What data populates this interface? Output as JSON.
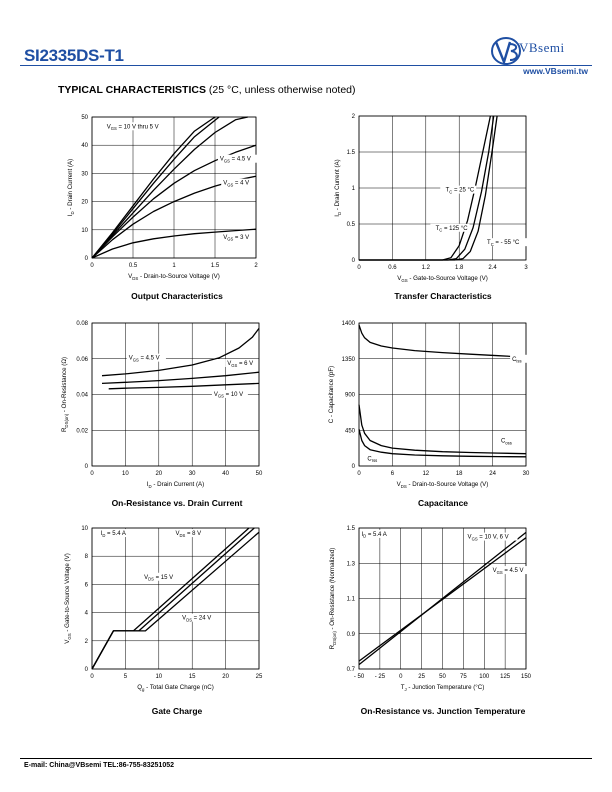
{
  "header": {
    "part_number": "SI2335DS-T1",
    "brand": "VBsemi",
    "website": "www.VBsemi.tw",
    "section_title_bold": "TYPICAL CHARACTERISTICS",
    "section_title_rest": " (25 °C, unless otherwise noted)"
  },
  "footer": {
    "contact": "E-mail:  China@VBsemi   TEL:86-755-83251052"
  },
  "chart_data": [
    {
      "id": "output",
      "type": "line",
      "title": "Output Characteristics",
      "xlabel": "VDS - Drain-to-Source Voltage (V)",
      "ylabel": "ID - Drain Current (A)",
      "xlim": [
        0,
        2
      ],
      "ylim": [
        0,
        50
      ],
      "xticks": [
        "0",
        "0.5",
        "1",
        "1.5",
        "2"
      ],
      "yticks": [
        "0",
        "10",
        "20",
        "30",
        "40",
        "50"
      ],
      "grid": true,
      "series": [
        {
          "name": "VGS = 10 V thru 5 V",
          "x": [
            0,
            0.25,
            0.5,
            0.75,
            1.0,
            1.25,
            1.5
          ],
          "y": [
            0,
            9,
            18.5,
            28,
            37,
            45,
            50
          ]
        },
        {
          "x": [
            0,
            0.25,
            0.5,
            0.75,
            1.0,
            1.25,
            1.55
          ],
          "y": [
            0,
            8.5,
            17.5,
            26.5,
            35,
            43,
            50
          ]
        },
        {
          "x": [
            0,
            0.25,
            0.5,
            0.75,
            1.0,
            1.25,
            1.5,
            1.75,
            1.9
          ],
          "y": [
            0,
            8,
            16,
            24,
            31.5,
            38.5,
            44.5,
            49,
            50
          ]
        },
        {
          "name": "VGS = 4.5 V",
          "x": [
            0,
            0.25,
            0.5,
            0.75,
            1.0,
            1.25,
            1.5,
            1.75,
            2.0
          ],
          "y": [
            0,
            7.5,
            14.5,
            21,
            26.5,
            31,
            34.5,
            37.5,
            40
          ]
        },
        {
          "name": "VGS = 4 V",
          "x": [
            0,
            0.25,
            0.5,
            0.75,
            1.0,
            1.25,
            1.5,
            1.75,
            2.0
          ],
          "y": [
            0,
            6.5,
            12,
            16.5,
            20,
            23,
            25.5,
            27.5,
            29
          ]
        },
        {
          "name": "VGS = 3 V",
          "x": [
            0,
            0.25,
            0.5,
            0.75,
            1.0,
            1.25,
            1.5,
            1.75,
            2.0
          ],
          "y": [
            0,
            3.2,
            5.4,
            6.8,
            7.8,
            8.6,
            9.2,
            9.7,
            10.2
          ]
        }
      ],
      "labels": [
        "VGS = 10 V thru 5 V",
        "VGS = 4.5 V",
        "VGS = 4 V",
        "VGS = 3 V"
      ]
    },
    {
      "id": "transfer",
      "type": "line",
      "title": "Transfer Characteristics",
      "xlabel": "VGS - Gate-to-Source Voltage (V)",
      "ylabel": "ID - Drain Current (A)",
      "xlim": [
        0,
        3
      ],
      "ylim": [
        0,
        2
      ],
      "xticks": [
        "0",
        "0.6",
        "1.2",
        "1.8",
        "2.4",
        "3"
      ],
      "yticks": [
        "0",
        "0.5",
        "1",
        "1.5",
        "2"
      ],
      "grid": true,
      "series": [
        {
          "name": "TC = 25 °C",
          "x": [
            0,
            1.6,
            1.75,
            1.9,
            2.05,
            2.2,
            2.33,
            2.42
          ],
          "y": [
            0,
            0,
            0.02,
            0.15,
            0.45,
            0.95,
            1.5,
            2.0
          ]
        },
        {
          "name": "TC = 125 °C",
          "x": [
            0,
            1.5,
            1.65,
            1.8,
            1.95,
            2.1,
            2.25,
            2.36
          ],
          "y": [
            0,
            0,
            0.03,
            0.2,
            0.55,
            1.05,
            1.6,
            2.0
          ]
        },
        {
          "name": "TC = - 55 °C",
          "x": [
            0,
            1.72,
            1.87,
            2.0,
            2.14,
            2.27,
            2.39,
            2.48
          ],
          "y": [
            0,
            0,
            0.02,
            0.12,
            0.4,
            0.9,
            1.5,
            2.0
          ]
        }
      ],
      "labels": [
        "TC = 25 °C",
        "TC = 125 °C",
        "TC = - 55 °C"
      ]
    },
    {
      "id": "onres",
      "type": "line",
      "title": "On-Resistance vs. Drain Current",
      "xlabel": "ID - Drain Current (A)",
      "ylabel": "RDS(on) - On-Resistance (Ω)",
      "xlim": [
        0,
        50
      ],
      "ylim": [
        0,
        0.08
      ],
      "xticks": [
        "0",
        "10",
        "20",
        "30",
        "40",
        "50"
      ],
      "yticks": [
        "0",
        "0.02",
        "0.04",
        "0.06",
        "0.08"
      ],
      "grid": true,
      "series": [
        {
          "name": "VGS = 4.5 V",
          "x": [
            3,
            10,
            20,
            30,
            38,
            44,
            48,
            50
          ],
          "y": [
            0.0505,
            0.0515,
            0.0535,
            0.0565,
            0.0605,
            0.066,
            0.072,
            0.077
          ]
        },
        {
          "name": "VGS = 6 V",
          "x": [
            3,
            10,
            20,
            30,
            40,
            50
          ],
          "y": [
            0.0462,
            0.0468,
            0.0478,
            0.049,
            0.0505,
            0.0525
          ]
        },
        {
          "name": "VGS = 10 V",
          "x": [
            5,
            10,
            20,
            30,
            40,
            50
          ],
          "y": [
            0.0432,
            0.0435,
            0.044,
            0.0446,
            0.0454,
            0.0462
          ]
        }
      ],
      "labels": [
        "VGS = 4.5 V",
        "VGS = 6 V",
        "VGS = 10 V"
      ]
    },
    {
      "id": "capacitance",
      "type": "line",
      "title": "Capacitance",
      "xlabel": "VDS - Drain-to-Source Voltage (V)",
      "ylabel": "C - Capacitance (pF)",
      "xlim": [
        0,
        30
      ],
      "ylim": [
        0,
        1400
      ],
      "xticks": [
        "0",
        "6",
        "12",
        "18",
        "24",
        "30"
      ],
      "yticks": [
        "0",
        "450",
        "900",
        "1350",
        "1400"
      ],
      "grid": true,
      "series": [
        {
          "name": "Ciss",
          "x": [
            0,
            0.5,
            1,
            2,
            4,
            6,
            10,
            15,
            20,
            25,
            30
          ],
          "y": [
            1380,
            1300,
            1255,
            1210,
            1175,
            1155,
            1130,
            1110,
            1095,
            1080,
            1065
          ]
        },
        {
          "name": "Coss",
          "x": [
            0,
            0.5,
            1,
            2,
            4,
            6,
            10,
            15,
            20,
            25,
            30
          ],
          "y": [
            600,
            400,
            320,
            250,
            200,
            175,
            155,
            140,
            132,
            126,
            120
          ]
        },
        {
          "name": "Crss",
          "x": [
            0,
            0.5,
            1,
            2,
            4,
            6,
            10,
            15,
            20,
            25,
            30
          ],
          "y": [
            360,
            250,
            200,
            160,
            135,
            120,
            108,
            100,
            95,
            92,
            90
          ]
        }
      ],
      "labels": [
        "Ciss",
        "Coss",
        "Crss"
      ]
    },
    {
      "id": "gatecharge",
      "type": "line",
      "title": "Gate Charge",
      "xlabel": "Qg - Total Gate Charge (nC)",
      "ylabel": "VGS - Gate-to-Source Voltage (V)",
      "xlim": [
        0,
        25
      ],
      "ylim": [
        0,
        10
      ],
      "xticks": [
        "0",
        "5",
        "10",
        "15",
        "20",
        "25"
      ],
      "yticks": [
        "0",
        "2",
        "4",
        "6",
        "8",
        "10"
      ],
      "grid": true,
      "series": [
        {
          "name": "VDS = 8 V",
          "x": [
            0,
            3.2,
            6.2,
            23.5
          ],
          "y": [
            0,
            2.7,
            2.7,
            10
          ]
        },
        {
          "name": "VDS = 15 V",
          "x": [
            0,
            3.2,
            7.0,
            24.3
          ],
          "y": [
            0,
            2.7,
            2.7,
            10
          ]
        },
        {
          "name": "VDS = 24 V",
          "x": [
            0,
            3.2,
            8.0,
            25
          ],
          "y": [
            0,
            2.7,
            2.7,
            9.7
          ]
        }
      ],
      "labels": [
        "ID = 5.4 A",
        "VDS = 8 V",
        "VDS = 15 V",
        "VDS = 24 V"
      ]
    },
    {
      "id": "onrestemp",
      "type": "line",
      "title": "On-Resistance vs. Junction Temperature",
      "xlabel": "TJ - Junction Temperature (°C)",
      "ylabel": "RDS(on) - On-Resistance (Normalized)",
      "xlim": [
        -50,
        150
      ],
      "ylim": [
        0.7,
        1.5
      ],
      "xticks": [
        "- 50",
        "- 25",
        "0",
        "25",
        "50",
        "75",
        "100",
        "125",
        "150"
      ],
      "yticks": [
        "0.7",
        "0.9",
        "1.1",
        "1.3",
        "1.5"
      ],
      "grid": true,
      "series": [
        {
          "name": "VGS = 10 V, 6 V",
          "x": [
            -50,
            150
          ],
          "y": [
            0.725,
            1.475
          ]
        },
        {
          "name": "VGS = 4.5 V",
          "x": [
            -50,
            150
          ],
          "y": [
            0.745,
            1.445
          ]
        }
      ],
      "labels": [
        "ID = 5.4 A",
        "VGS = 10 V, 6 V",
        "VGS = 4.5 V"
      ]
    }
  ]
}
